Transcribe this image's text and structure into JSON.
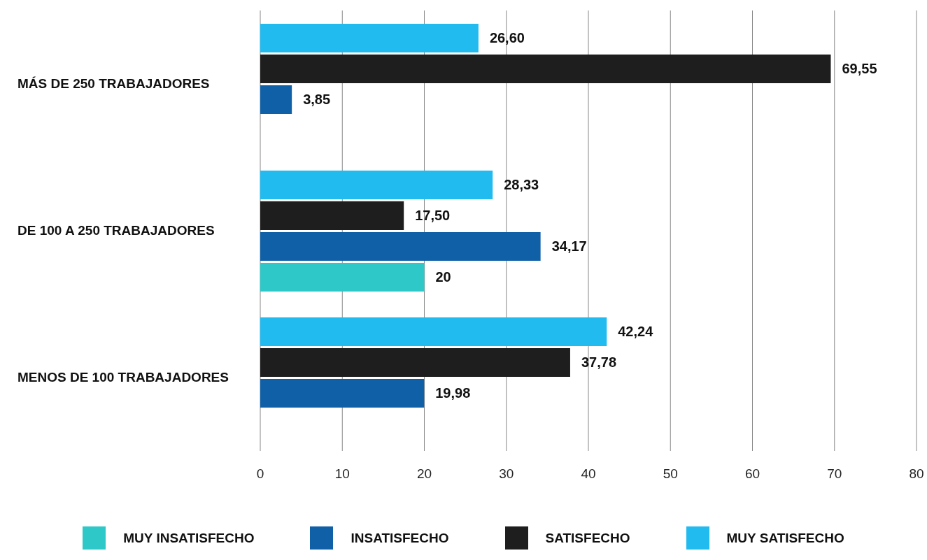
{
  "chart_data": {
    "type": "bar",
    "orientation": "horizontal",
    "categories": [
      "MÁS DE 250 TRABAJADORES",
      "DE 100 A 250 TRABAJADORES",
      "MENOS DE 100 TRABAJADORES"
    ],
    "series": [
      {
        "name": "MUY INSATISFECHO",
        "color": "#2ec8c8",
        "values": [
          null,
          20,
          null
        ],
        "value_labels": [
          null,
          "20",
          null
        ]
      },
      {
        "name": "INSATISFECHO",
        "color": "#1060a8",
        "values": [
          3.85,
          34.17,
          19.98
        ],
        "value_labels": [
          "3,85",
          "34,17",
          "19,98"
        ]
      },
      {
        "name": "SATISFECHO",
        "color": "#1e1e1e",
        "values": [
          69.55,
          17.5,
          37.78
        ],
        "value_labels": [
          "69,55",
          "17,50",
          "37,78"
        ]
      },
      {
        "name": "MUY SATISFECHO",
        "color": "#22bbf0",
        "values": [
          26.6,
          28.33,
          42.24
        ],
        "value_labels": [
          "26,60",
          "28,33",
          "42,24"
        ]
      }
    ],
    "xlim": [
      0,
      80
    ],
    "xticks": [
      0,
      10,
      20,
      30,
      40,
      50,
      60,
      70,
      80
    ],
    "grid": "x",
    "legend": "bottom"
  }
}
